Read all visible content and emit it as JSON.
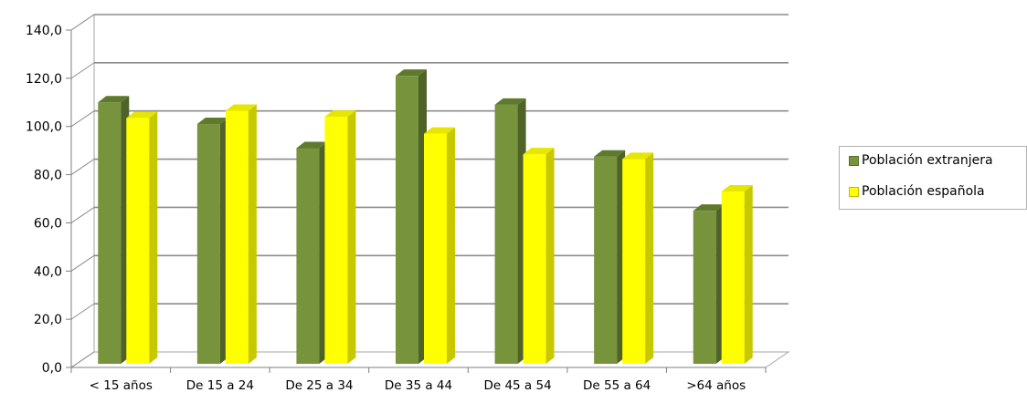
{
  "chart_data": {
    "type": "bar",
    "categories": [
      "< 15 años",
      "De 15 a 24",
      "De 25 a 34",
      "De 35 a 44",
      "De 45 a 54",
      "De 55 a 64",
      ">64 años"
    ],
    "series": [
      {
        "name": "Población extranjera",
        "values": [
          108.5,
          99.5,
          89.5,
          119.5,
          107.5,
          86.0,
          63.5
        ],
        "color": "#77933c",
        "top_color": "#5e7a2c",
        "side_color": "#4f6228"
      },
      {
        "name": "Población española",
        "values": [
          102.0,
          105.0,
          102.5,
          95.5,
          87.0,
          85.0,
          71.5
        ],
        "color": "#ffff00",
        "top_color": "#e6e600",
        "side_color": "#c8c800"
      }
    ],
    "y_ticks": [
      "0,0",
      "20,0",
      "40,0",
      "60,0",
      "80,0",
      "100,0",
      "120,0",
      "140,0"
    ],
    "ylim": [
      0,
      140
    ],
    "grid": true,
    "legend_position": "right",
    "title": "",
    "xlabel": "",
    "ylabel": ""
  }
}
